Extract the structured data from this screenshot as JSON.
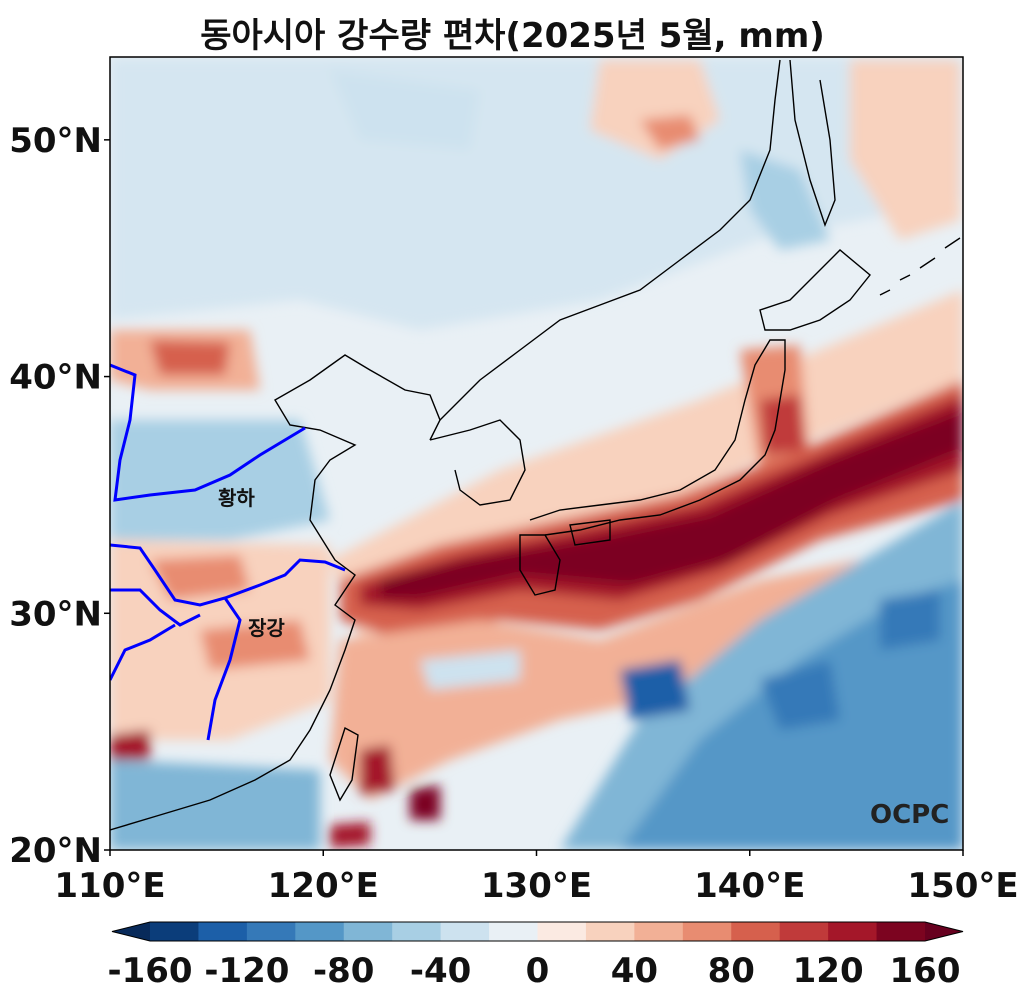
{
  "title": "동아시아 강수량 편차(2025년 5월, mm)",
  "lon_ticks": [
    "110°E",
    "120°E",
    "130°E",
    "140°E",
    "150°E"
  ],
  "lat_ticks": [
    "50°N",
    "40°N",
    "30°N",
    "20°N"
  ],
  "extent": {
    "lon": [
      110,
      150
    ],
    "lat": [
      20,
      53.5
    ]
  },
  "colorbar": {
    "tick_labels": [
      "-160",
      "-120",
      "-80",
      "-40",
      "0",
      "40",
      "80",
      "120",
      "160"
    ],
    "colors": [
      "#0b3d7a",
      "#1c5fa8",
      "#3579b8",
      "#5497c7",
      "#80b6d6",
      "#a8cfe4",
      "#cde2ef",
      "#e9f0f5",
      "#fbeae2",
      "#f8d2be",
      "#f2b096",
      "#e88c71",
      "#d6604d",
      "#c03a3a",
      "#a41729",
      "#7c0420"
    ],
    "under_color": "#082a5a",
    "over_color": "#67001f"
  },
  "rivers": {
    "yellow_river": "황하",
    "yangtze": "장강"
  },
  "logo": "OCPC",
  "colors": {
    "river": "#0000ff",
    "coast": "#000000"
  }
}
